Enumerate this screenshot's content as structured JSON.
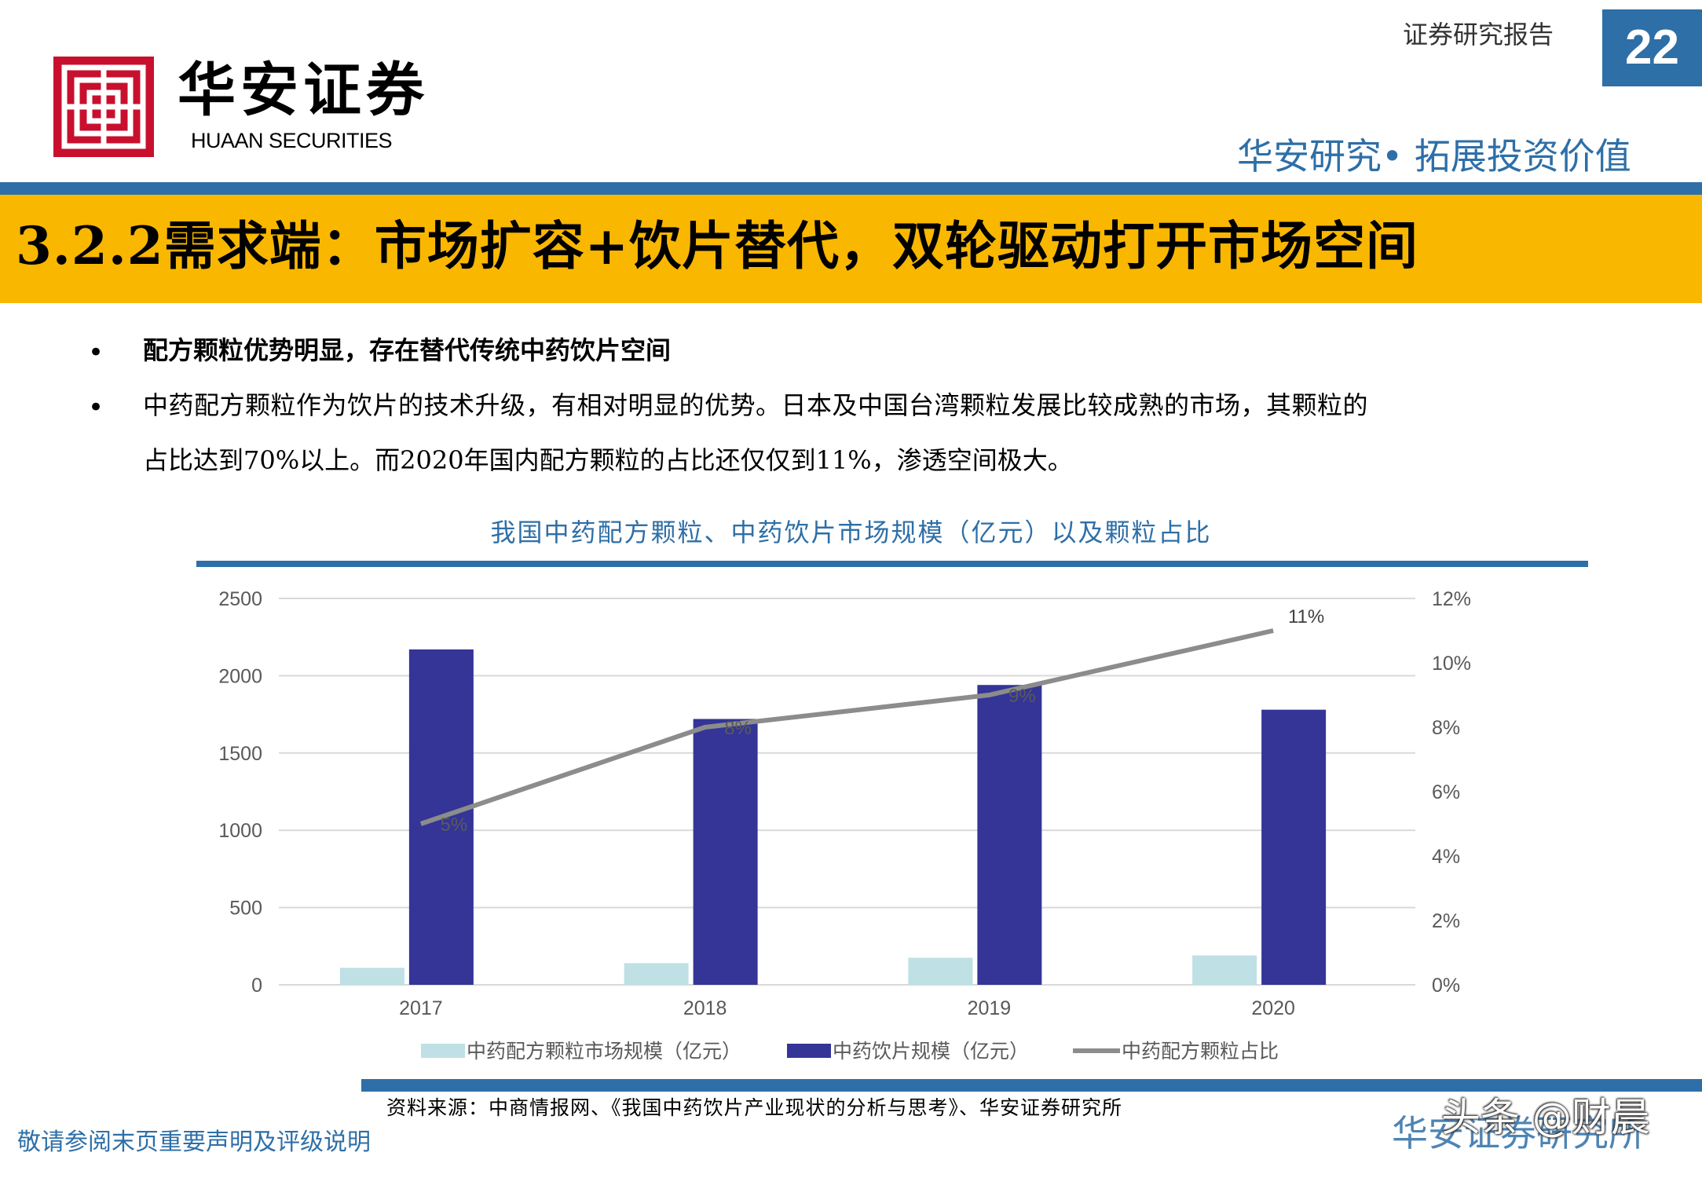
{
  "header": {
    "logo_cn": "华安证券",
    "logo_en": "HUAAN SECURITIES",
    "report_type": "证券研究报告",
    "page_number": "22",
    "tagline": "华安研究• 拓展投资价值"
  },
  "banner": {
    "title": "3.2.2需求端：市场扩容+饮片替代，双轮驱动打开市场空间"
  },
  "bullets": [
    {
      "text": "配方颗粒优势明显，存在替代传统中药饮片空间"
    },
    {
      "line1": "中药配方颗粒作为饮片的技术升级，有相对明显的优势。日本及中国台湾颗粒发展比较成熟的市场，其颗粒的",
      "line2": "占比达到70%以上。而2020年国内配方颗粒的占比还仅仅到11%，渗透空间极大。"
    }
  ],
  "colors": {
    "brand_blue": "#2e6fa7",
    "banner_yellow": "#f9b700",
    "logo_red": "#c8102e",
    "bar_light": "#bfe0e4",
    "bar_dark": "#343597",
    "line_gray": "#8c8c8c"
  },
  "chart_data": {
    "type": "bar",
    "title": "我国中药配方颗粒、中药饮片市场规模（亿元）以及颗粒占比",
    "categories": [
      "2017",
      "2018",
      "2019",
      "2020"
    ],
    "ylim": [
      0,
      2500
    ],
    "yticks": [
      "0",
      "500",
      "1000",
      "1500",
      "2000",
      "2500"
    ],
    "y2lim": [
      0,
      12
    ],
    "y2ticks": [
      "0%",
      "2%",
      "4%",
      "6%",
      "8%",
      "10%",
      "12%"
    ],
    "series": [
      {
        "name": "中药配方颗粒市场规模（亿元）",
        "type": "bar",
        "values": [
          110,
          140,
          175,
          190
        ]
      },
      {
        "name": "中药饮片规模（亿元）",
        "type": "bar",
        "values": [
          2170,
          1720,
          1940,
          1780
        ]
      },
      {
        "name": "中药配方颗粒占比",
        "type": "line",
        "axis": "right",
        "values": [
          5,
          8,
          9,
          11
        ],
        "labels": [
          "5%",
          "8%",
          "9%",
          "11%"
        ]
      }
    ]
  },
  "footer": {
    "source": "资料来源：中商情报网、《我国中药饮片产业现状的分析与思考》、华安证券研究所",
    "disclaimer": "敬请参阅末页重要声明及评级说明",
    "brand": "华安证券研究所",
    "watermark": "头条 @财晨"
  }
}
